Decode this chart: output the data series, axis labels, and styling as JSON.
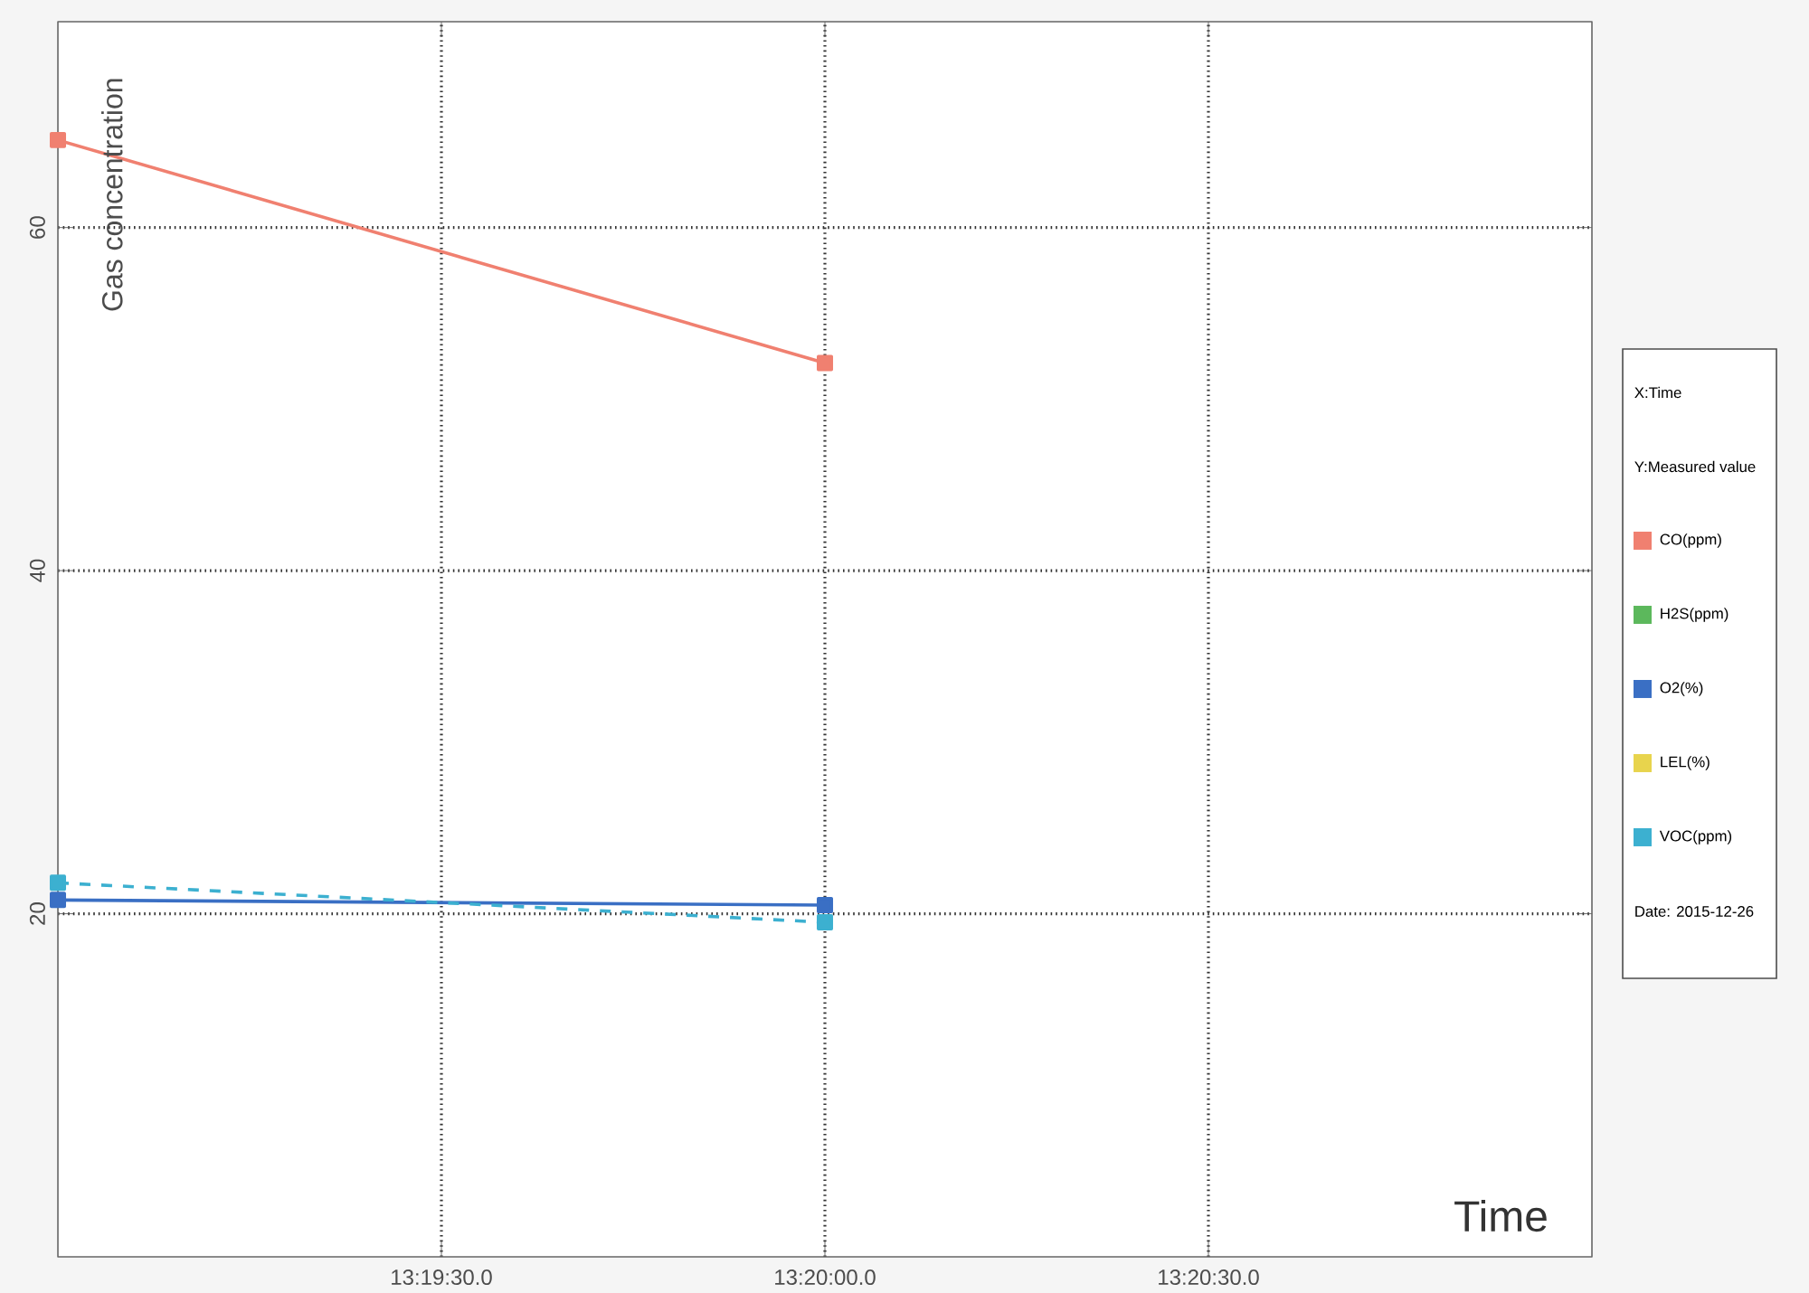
{
  "chart_data": {
    "type": "line",
    "xlabel": "Time",
    "ylabel": "Gas concentration",
    "categories": [
      null,
      "13:19:30.0",
      "13:20:00.0",
      "13:20:30.0",
      null
    ],
    "series": [
      {
        "name": "CO(ppm)",
        "color": "#f08070",
        "values": [
          65.1,
          null,
          52.1,
          null,
          null
        ]
      },
      {
        "name": "H2S(ppm)",
        "color": "#5cb85c",
        "values": [
          null,
          null,
          null,
          null,
          null
        ]
      },
      {
        "name": "O2(%)",
        "color": "#3a6fc4",
        "values": [
          20.8,
          null,
          20.5,
          null,
          null
        ]
      },
      {
        "name": "LEL(%)",
        "color": "#e8d44d",
        "values": [
          null,
          null,
          null,
          null,
          null
        ]
      },
      {
        "name": "VOC(ppm)",
        "color": "#3cb0d0",
        "values": [
          21.8,
          null,
          19.5,
          null,
          null
        ],
        "line_style": "dashed"
      }
    ],
    "ylim": [
      0,
      72
    ],
    "yticks": [
      20,
      40,
      60
    ],
    "grid": true,
    "marker": "square",
    "legend": "right",
    "annotations": [
      "X:Time",
      "Y:Measured value",
      "Date: 2015-12-26"
    ]
  }
}
